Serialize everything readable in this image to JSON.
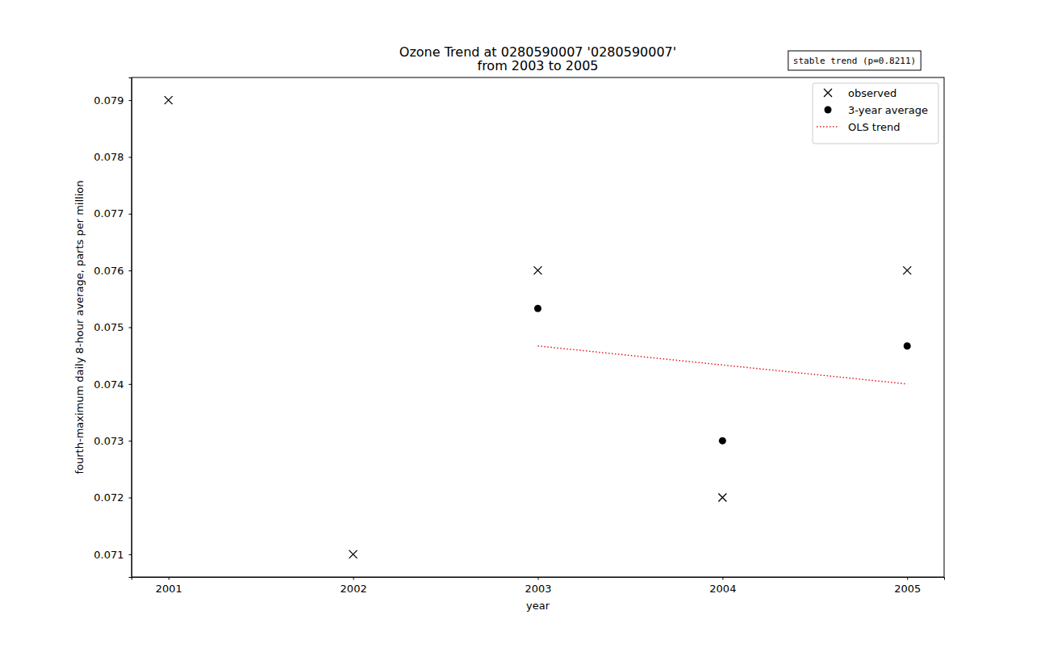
{
  "chart_data": {
    "type": "scatter",
    "title": "Ozone Trend at 0280590007 '0280590007'",
    "subtitle": "from 2003 to 2005",
    "x_label": "year",
    "y_label": "fourth-maximum daily 8-hour average, parts per million",
    "annotation": "stable trend (p=0.8211)",
    "xlim": [
      2000.8,
      2005.2
    ],
    "xticks": [
      2001,
      2002,
      2003,
      2004,
      2005
    ],
    "ylim": [
      0.0706,
      0.0794
    ],
    "yticks": [
      0.071,
      0.072,
      0.073,
      0.074,
      0.075,
      0.076,
      0.077,
      0.078,
      0.079
    ],
    "grid": false,
    "legend": "upper right",
    "series": [
      {
        "name": "observed",
        "type": "scatter",
        "marker": "x",
        "color": "#000000",
        "x": [
          2001,
          2002,
          2003,
          2004,
          2005
        ],
        "values": [
          0.079,
          0.071,
          0.076,
          0.072,
          0.076
        ]
      },
      {
        "name": "3-year average",
        "type": "scatter",
        "marker": "circle",
        "color": "#000000",
        "x": [
          2003,
          2004,
          2005
        ],
        "values": [
          0.07533,
          0.073,
          0.07467
        ]
      },
      {
        "name": "OLS trend",
        "type": "line",
        "line_style": "dotted",
        "color": "#e41a1c",
        "x": [
          2003,
          2005
        ],
        "values": [
          0.07467,
          0.074
        ]
      }
    ]
  }
}
